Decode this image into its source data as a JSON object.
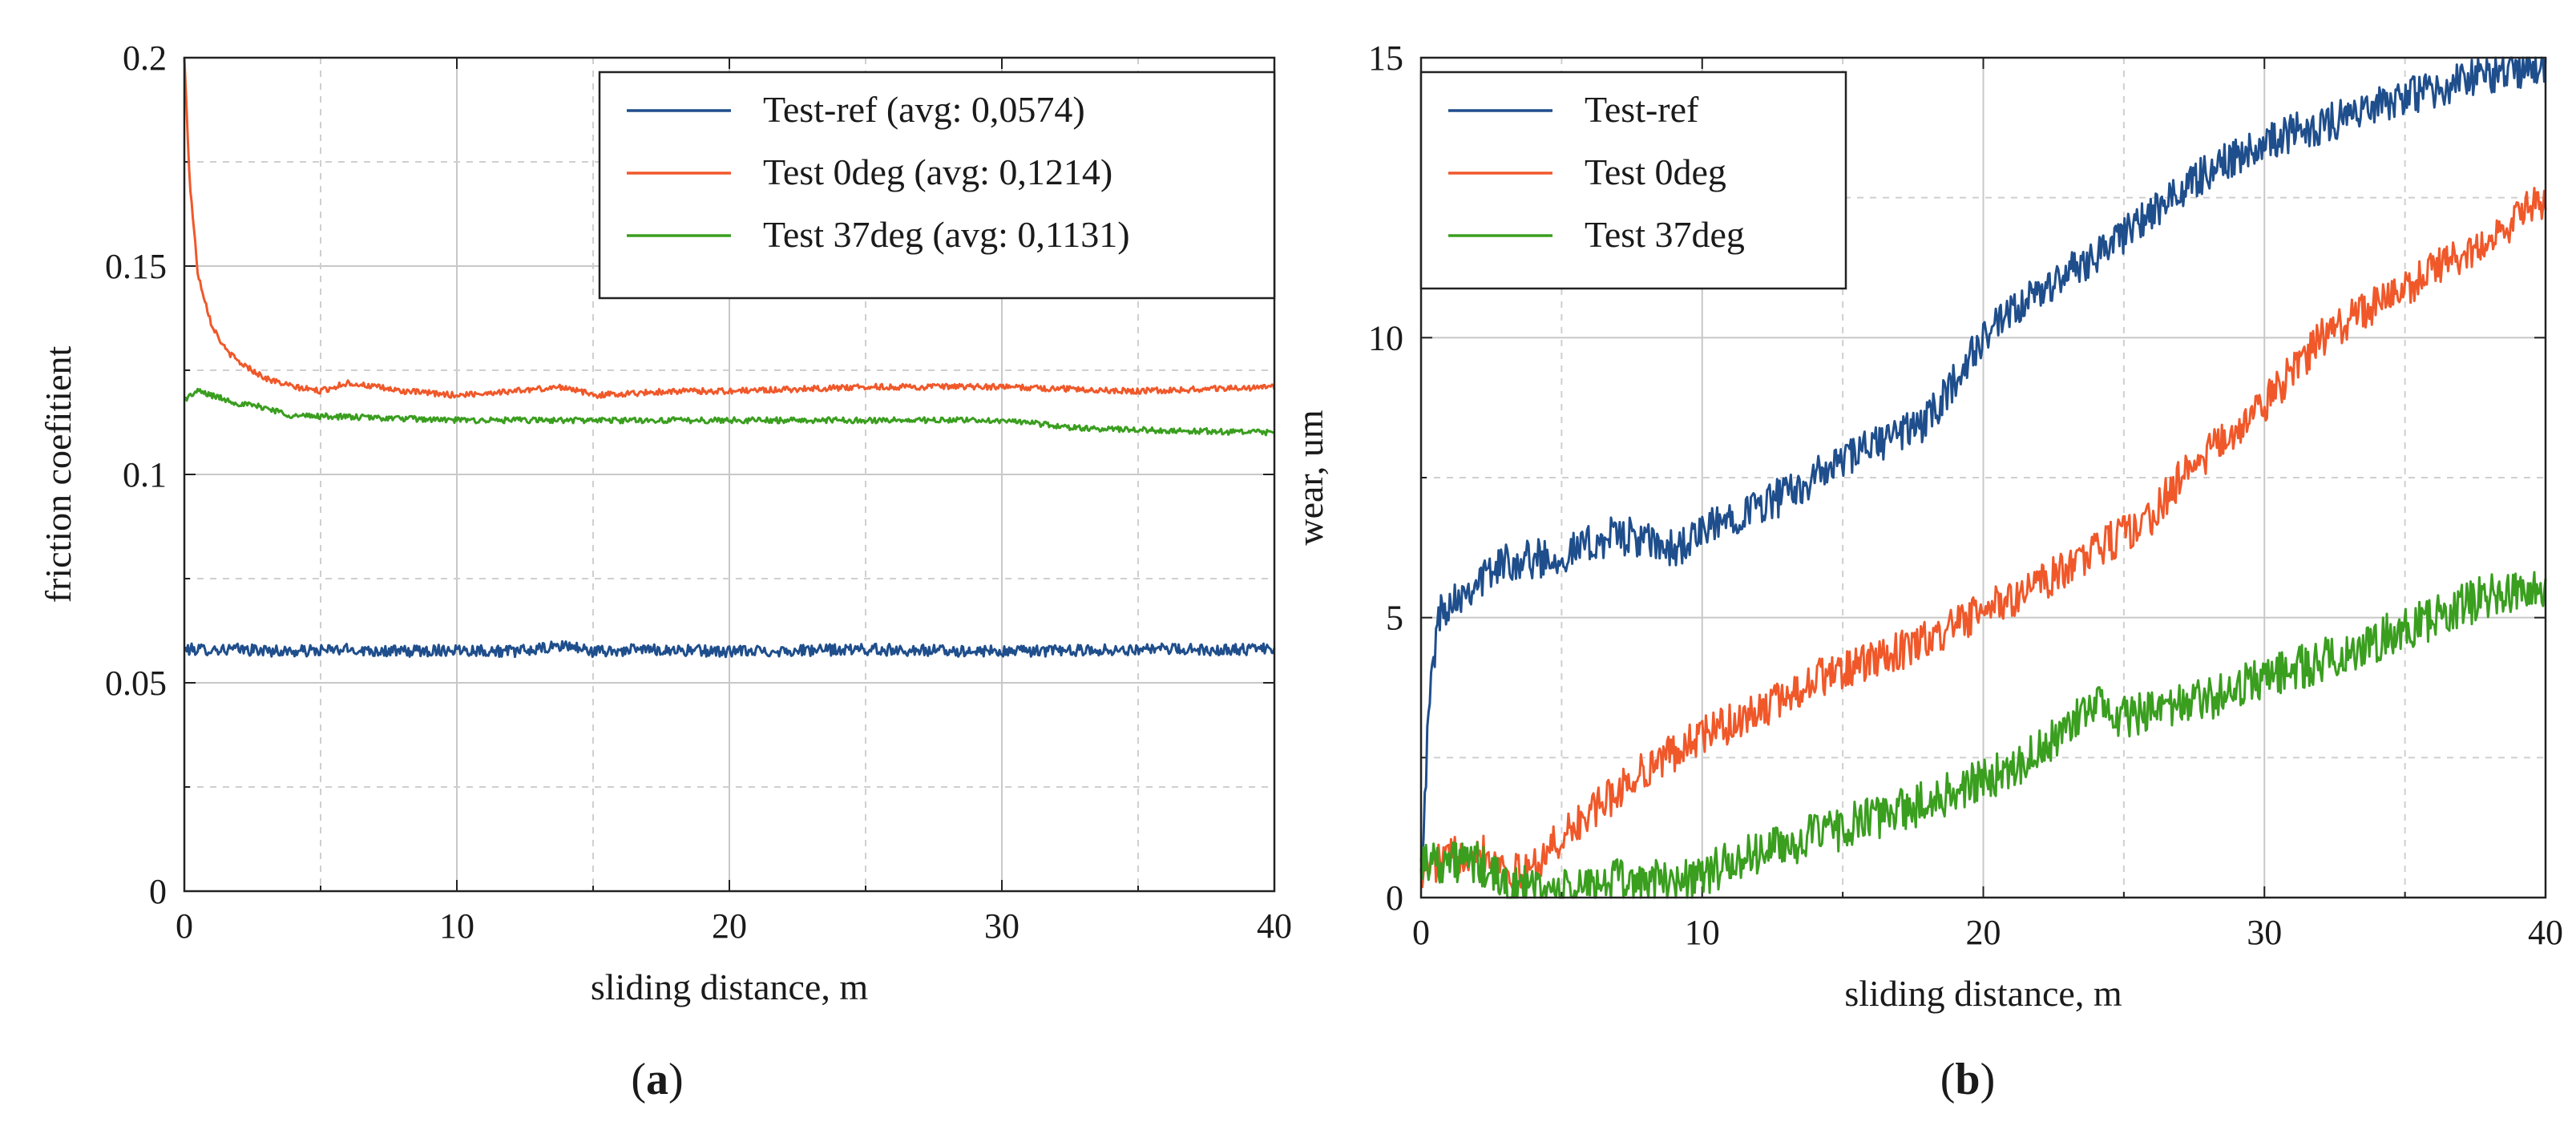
{
  "chart_data": [
    {
      "id": "a",
      "type": "line",
      "panel_label": "a",
      "title": "",
      "xlabel": "sliding distance, m",
      "ylabel": "friction coefitient",
      "xlim": [
        0,
        40
      ],
      "ylim": [
        0,
        0.2
      ],
      "xticks": [
        0,
        10,
        20,
        30,
        40
      ],
      "xtick_labels": [
        "0",
        "10",
        "20",
        "30",
        "40"
      ],
      "yticks": [
        0,
        0.05,
        0.1,
        0.15,
        0.2
      ],
      "ytick_labels": [
        "0",
        "0.05",
        "0.1",
        "0.15",
        "0.2"
      ],
      "x_minor_grid": [
        5,
        15,
        25,
        35
      ],
      "y_minor_grid": [
        0.025,
        0.075,
        0.125,
        0.175
      ],
      "grid": true,
      "legend_position": "top-right",
      "series": [
        {
          "name": "Test-ref (avg: 0,0574)",
          "color": "#1f4e8c",
          "points": [
            [
              0,
              0.058
            ],
            [
              2,
              0.058
            ],
            [
              4,
              0.0575
            ],
            [
              6,
              0.058
            ],
            [
              8,
              0.0575
            ],
            [
              10,
              0.058
            ],
            [
              12,
              0.0575
            ],
            [
              13,
              0.058
            ],
            [
              14,
              0.059
            ],
            [
              15,
              0.0575
            ],
            [
              17,
              0.058
            ],
            [
              20,
              0.0575
            ],
            [
              25,
              0.058
            ],
            [
              30,
              0.0575
            ],
            [
              35,
              0.058
            ],
            [
              40,
              0.058
            ]
          ],
          "noise": 0.0014
        },
        {
          "name": "Test 0deg (avg: 0,1214)",
          "color": "#f0582a",
          "points": [
            [
              0,
              0.2
            ],
            [
              0.2,
              0.17
            ],
            [
              0.5,
              0.148
            ],
            [
              1,
              0.136
            ],
            [
              1.5,
              0.13
            ],
            [
              2,
              0.127
            ],
            [
              3,
              0.123
            ],
            [
              4,
              0.121
            ],
            [
              5,
              0.12
            ],
            [
              6,
              0.122
            ],
            [
              7,
              0.121
            ],
            [
              8,
              0.12
            ],
            [
              10,
              0.119
            ],
            [
              12,
              0.12
            ],
            [
              14,
              0.121
            ],
            [
              15,
              0.119
            ],
            [
              18,
              0.12
            ],
            [
              20,
              0.12
            ],
            [
              25,
              0.121
            ],
            [
              30,
              0.121
            ],
            [
              35,
              0.12
            ],
            [
              40,
              0.121
            ]
          ],
          "noise": 0.0007
        },
        {
          "name": "Test 37deg (avg: 0,1131)",
          "color": "#3a9e1f",
          "points": [
            [
              0,
              0.118
            ],
            [
              0.5,
              0.12
            ],
            [
              1,
              0.119
            ],
            [
              2,
              0.117
            ],
            [
              3,
              0.116
            ],
            [
              4,
              0.114
            ],
            [
              5,
              0.114
            ],
            [
              10,
              0.113
            ],
            [
              15,
              0.113
            ],
            [
              20,
              0.113
            ],
            [
              25,
              0.113
            ],
            [
              30,
              0.113
            ],
            [
              33,
              0.111
            ],
            [
              40,
              0.11
            ]
          ],
          "noise": 0.0007
        }
      ]
    },
    {
      "id": "b",
      "type": "line",
      "panel_label": "b",
      "title": "",
      "xlabel": "sliding distance, m",
      "ylabel": "wear, um",
      "xlim": [
        0,
        40
      ],
      "ylim": [
        0,
        15
      ],
      "xticks": [
        0,
        10,
        20,
        30,
        40
      ],
      "xtick_labels": [
        "0",
        "10",
        "20",
        "30",
        "40"
      ],
      "yticks": [
        0,
        5,
        10,
        15
      ],
      "ytick_labels": [
        "0",
        "5",
        "10",
        "15"
      ],
      "x_minor_grid": [
        5,
        15,
        25,
        35
      ],
      "y_minor_grid": [
        2.5,
        7.5,
        12.5
      ],
      "grid": true,
      "legend_position": "top-left",
      "series": [
        {
          "name": "Test-ref",
          "color": "#1f4e8c",
          "points": [
            [
              0,
              0.5
            ],
            [
              0.3,
              3.5
            ],
            [
              0.6,
              5.0
            ],
            [
              1,
              5.3
            ],
            [
              3,
              6.0
            ],
            [
              5,
              6.1
            ],
            [
              7,
              6.5
            ],
            [
              9,
              6.2
            ],
            [
              11,
              6.8
            ],
            [
              13,
              7.2
            ],
            [
              15,
              7.8
            ],
            [
              17,
              8.3
            ],
            [
              18,
              8.5
            ],
            [
              20,
              10.0
            ],
            [
              22,
              10.8
            ],
            [
              24,
              11.5
            ],
            [
              26,
              12.2
            ],
            [
              28,
              13.0
            ],
            [
              30,
              13.5
            ],
            [
              32,
              13.8
            ],
            [
              35,
              14.3
            ],
            [
              38,
              14.7
            ],
            [
              40,
              14.9
            ]
          ],
          "noise": 0.35
        },
        {
          "name": "Test 0deg",
          "color": "#f0582a",
          "points": [
            [
              0,
              0.5
            ],
            [
              2,
              0.9
            ],
            [
              3.5,
              0.4
            ],
            [
              4,
              0.6
            ],
            [
              6,
              1.5
            ],
            [
              8,
              2.3
            ],
            [
              10,
              2.9
            ],
            [
              12,
              3.3
            ],
            [
              14,
              3.9
            ],
            [
              16,
              4.2
            ],
            [
              18,
              4.6
            ],
            [
              20,
              5.1
            ],
            [
              22,
              5.6
            ],
            [
              24,
              6.2
            ],
            [
              26,
              6.8
            ],
            [
              27,
              7.5
            ],
            [
              30,
              8.8
            ],
            [
              32,
              10.0
            ],
            [
              34,
              10.6
            ],
            [
              36,
              11.2
            ],
            [
              38,
              11.8
            ],
            [
              40,
              12.5
            ]
          ],
          "noise": 0.35
        },
        {
          "name": "Test 37deg",
          "color": "#3a9e1f",
          "points": [
            [
              0,
              0.7
            ],
            [
              2,
              0.6
            ],
            [
              3,
              0.2
            ],
            [
              5,
              0.1
            ],
            [
              7,
              0.3
            ],
            [
              9,
              0.3
            ],
            [
              10,
              0.4
            ],
            [
              12,
              0.8
            ],
            [
              14,
              1.1
            ],
            [
              16,
              1.4
            ],
            [
              18,
              1.7
            ],
            [
              20,
              2.1
            ],
            [
              22,
              2.6
            ],
            [
              23,
              3.0
            ],
            [
              24,
              3.5
            ],
            [
              25,
              3.2
            ],
            [
              27,
              3.4
            ],
            [
              30,
              3.9
            ],
            [
              33,
              4.4
            ],
            [
              36,
              5.0
            ],
            [
              38,
              5.4
            ],
            [
              40,
              5.6
            ]
          ],
          "noise": 0.4
        }
      ]
    }
  ]
}
